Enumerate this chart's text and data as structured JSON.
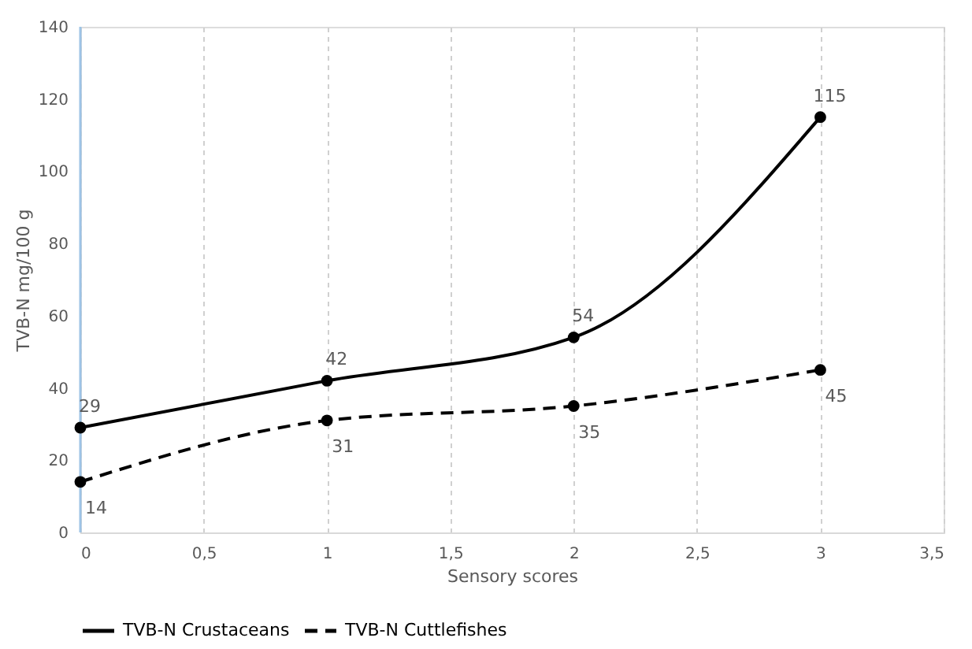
{
  "chart_data": {
    "type": "line",
    "xlabel": "Sensory scores",
    "ylabel": "TVB-N mg/100 g",
    "x": [
      0,
      1,
      2,
      3
    ],
    "series": [
      {
        "name": "TVB-N Crustaceans",
        "color": "#000000",
        "values": [
          29,
          42,
          54,
          115
        ],
        "line_style": "solid"
      },
      {
        "name": "TVB-N Cuttlefishes",
        "color": "#000000",
        "values": [
          14,
          31,
          35,
          45
        ],
        "line_style": "dashed"
      }
    ],
    "xlim": [
      0,
      3.5
    ],
    "xticks": [
      0,
      {
        "value": 0.5,
        "label": "0,5"
      },
      1,
      {
        "value": 1.5,
        "label": "1,5"
      },
      2,
      {
        "value": 2.5,
        "label": "2,5"
      },
      3,
      {
        "value": 3.5,
        "label": "3,5"
      }
    ],
    "ylim": [
      0,
      140
    ],
    "yticks": [
      0,
      20,
      40,
      60,
      80,
      100,
      120,
      140
    ],
    "grid": "x",
    "legend": "bottom",
    "marker": "circle",
    "data_labels": true
  }
}
